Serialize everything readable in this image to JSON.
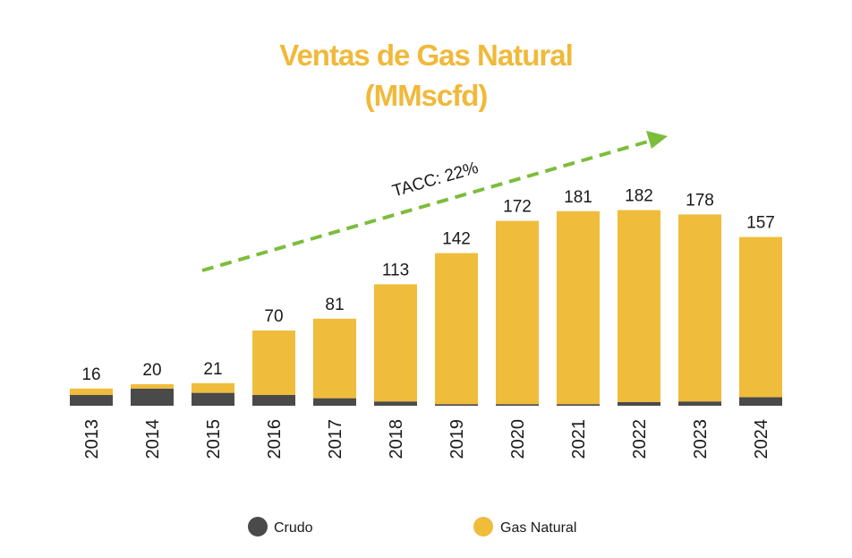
{
  "chart_data": {
    "type": "bar",
    "stacked": true,
    "title": "Ventas de Gas Natural",
    "subtitle": "(MMscfd)",
    "categories": [
      "2013",
      "2014",
      "2015",
      "2016",
      "2017",
      "2018",
      "2019",
      "2020",
      "2021",
      "2022",
      "2023",
      "2024"
    ],
    "totals": [
      "16",
      "20",
      "21",
      "70",
      "81",
      "113",
      "142",
      "172",
      "181",
      "182",
      "178",
      "157"
    ],
    "ylim": [
      0,
      200
    ],
    "series": [
      {
        "name": "Crudo",
        "color": "#4a4a4a",
        "values": [
          10,
          16,
          12,
          10,
          7,
          4,
          1.5,
          1.5,
          1.5,
          3.5,
          4,
          8
        ]
      },
      {
        "name": "Gas Natural",
        "color": "#f0bc3c",
        "values": [
          6,
          4,
          9,
          60,
          74,
          109,
          140.5,
          170.5,
          179.5,
          178.5,
          174,
          149
        ]
      }
    ],
    "annotation": {
      "text": "TACC: 22%",
      "color": "#7cbd3c"
    },
    "legend_position": "bottom"
  }
}
